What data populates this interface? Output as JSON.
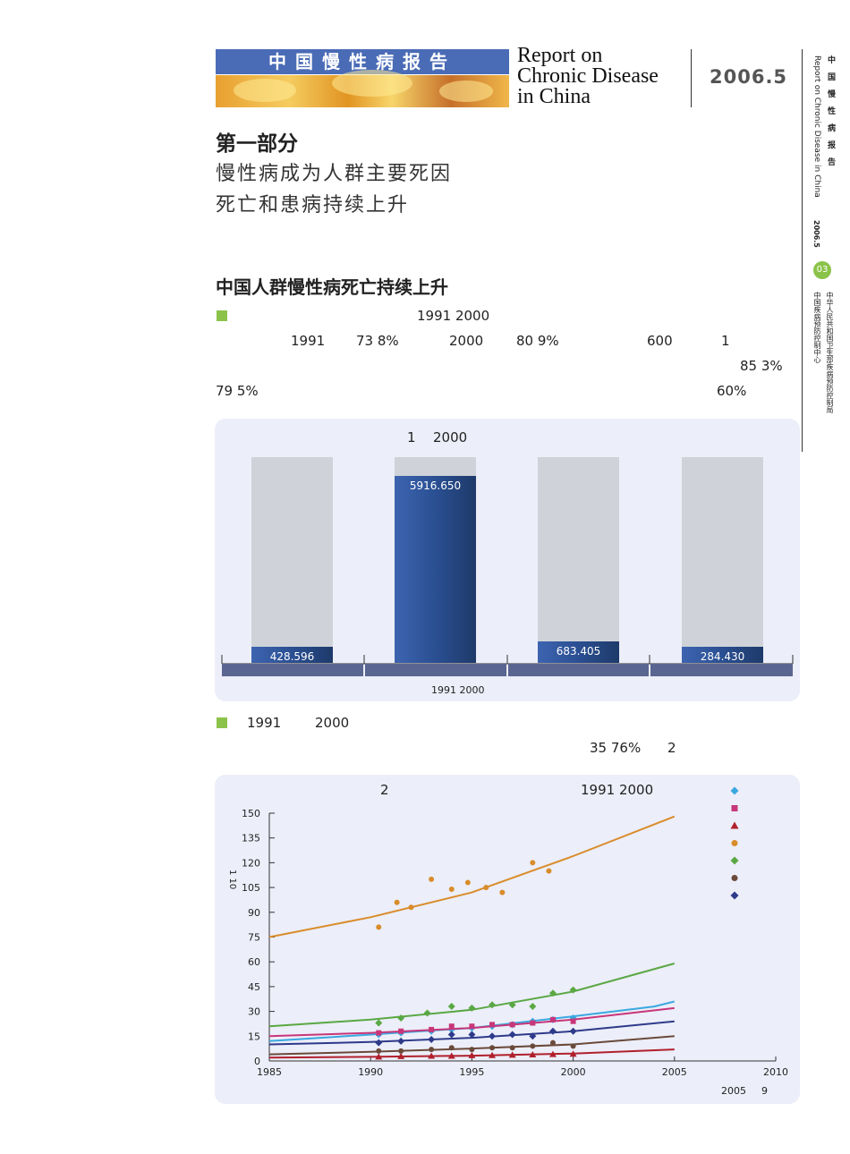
{
  "header": {
    "band_title": "中国慢性病报告",
    "en_title_lines": [
      "Report on",
      "Chronic Disease",
      "in China"
    ],
    "date": "2006.5"
  },
  "side": {
    "title_cn": "中国慢性病报告",
    "title_en": "Report on Chronic Disease in China",
    "date": "2006.5",
    "page_number": "03",
    "org1": "中华人民共和国卫生部疾病预防控制局",
    "org2": "中国疾病预防控制中心"
  },
  "part": {
    "title": "第一部分",
    "subtitle1": "慢性病成为人群主要死因",
    "subtitle2": "死亡和患病持续上升"
  },
  "section": {
    "title": "中国人群慢性病死亡持续上升",
    "p1_years": "1991  2000",
    "p1_a": "1991",
    "p1_b": "73  8%",
    "p1_c": "2000",
    "p1_d": "80  9%",
    "p1_e": "600",
    "p1_f": "1",
    "p1_g": "85  3%",
    "p1_h": "79  5%",
    "p1_i": "60%"
  },
  "chart1": {
    "title_a": "1",
    "title_b": "2000",
    "caption": "1991  2000",
    "bar_color": "#2c5296",
    "bg_color": "#cfd3d9",
    "axis_color": "#5a6590"
  },
  "para2": {
    "a": "1991",
    "b": "2000",
    "c": "35  76%",
    "d": "2"
  },
  "chart2": {
    "title_a": "2",
    "title_b": "1991  2000",
    "ylabel": "1 10",
    "footnote_a": "2005",
    "footnote_b": "9",
    "legend_markers": [
      {
        "shape": "diamond",
        "color": "#3aa8e0"
      },
      {
        "shape": "square",
        "color": "#c8367a"
      },
      {
        "shape": "triangle",
        "color": "#b0202c"
      },
      {
        "shape": "circle",
        "color": "#d98c2a"
      },
      {
        "shape": "diamond",
        "color": "#5aa844"
      },
      {
        "shape": "circle",
        "color": "#6a4a3a"
      },
      {
        "shape": "diamond",
        "color": "#2e3a8a"
      }
    ]
  },
  "chart_data": [
    {
      "type": "bar",
      "categories": [
        "",
        "",
        "",
        ""
      ],
      "values": [
        428.596,
        5916.65,
        683.405,
        284.43
      ],
      "labels": [
        "428.596",
        "5916.650",
        "683.405",
        "284.430"
      ],
      "ylim": [
        0,
        6500
      ]
    },
    {
      "type": "line",
      "x_ticks": [
        1985,
        1990,
        1995,
        2000,
        2005,
        2010
      ],
      "y_ticks": [
        0,
        15,
        30,
        45,
        60,
        75,
        90,
        105,
        120,
        135,
        150
      ],
      "xlim": [
        1985,
        2010
      ],
      "ylim": [
        0,
        150
      ],
      "series": [
        {
          "color": "#d98c2a",
          "marker": "circle",
          "fit": [
            [
              1985,
              75
            ],
            [
              1990,
              87
            ],
            [
              1995,
              102
            ],
            [
              2000,
              124
            ],
            [
              2005,
              148
            ]
          ],
          "points": [
            [
              1990.4,
              81
            ],
            [
              1991.3,
              96
            ],
            [
              1992,
              93
            ],
            [
              1993,
              110
            ],
            [
              1994,
              104
            ],
            [
              1994.8,
              108
            ],
            [
              1995.7,
              105
            ],
            [
              1996.5,
              102
            ],
            [
              1998,
              120
            ],
            [
              1998.8,
              115
            ]
          ]
        },
        {
          "color": "#5aa844",
          "marker": "diamond",
          "fit": [
            [
              1985,
              21
            ],
            [
              1990,
              25
            ],
            [
              1995,
              31
            ],
            [
              2000,
              42
            ],
            [
              2005,
              59
            ]
          ],
          "points": [
            [
              1990.4,
              23
            ],
            [
              1991.5,
              26
            ],
            [
              1992.8,
              29
            ],
            [
              1994,
              33
            ],
            [
              1995,
              32
            ],
            [
              1996,
              34
            ],
            [
              1997,
              34
            ],
            [
              1998,
              33
            ],
            [
              1999,
              41
            ],
            [
              2000,
              43
            ]
          ]
        },
        {
          "color": "#3aa8e0",
          "marker": "diamond",
          "fit": [
            [
              1985,
              12
            ],
            [
              1990,
              16
            ],
            [
              1995,
              20
            ],
            [
              2000,
              27
            ],
            [
              2004,
              33
            ],
            [
              2005,
              36
            ]
          ],
          "points": [
            [
              1990.4,
              16
            ],
            [
              1991.5,
              17
            ],
            [
              1993,
              18
            ],
            [
              1994,
              19
            ],
            [
              1995,
              20
            ],
            [
              1996,
              21
            ],
            [
              1997,
              22
            ],
            [
              1998,
              24
            ],
            [
              1999,
              25
            ],
            [
              2000,
              26
            ]
          ]
        },
        {
          "color": "#c8367a",
          "marker": "square",
          "fit": [
            [
              1985,
              15
            ],
            [
              1990,
              17
            ],
            [
              1995,
              20
            ],
            [
              2000,
              25
            ],
            [
              2005,
              32
            ]
          ],
          "points": [
            [
              1990.4,
              17
            ],
            [
              1991.5,
              18
            ],
            [
              1993,
              19
            ],
            [
              1994,
              21
            ],
            [
              1995,
              21
            ],
            [
              1996,
              22
            ],
            [
              1997,
              22
            ],
            [
              1998,
              23
            ],
            [
              1999,
              25
            ],
            [
              2000,
              24
            ]
          ]
        },
        {
          "color": "#2e3a8a",
          "marker": "diamond",
          "fit": [
            [
              1985,
              10
            ],
            [
              1990,
              11.5
            ],
            [
              1995,
              14
            ],
            [
              2000,
              18
            ],
            [
              2005,
              24
            ]
          ],
          "points": [
            [
              1990.4,
              11
            ],
            [
              1991.5,
              12
            ],
            [
              1993,
              13
            ],
            [
              1994,
              16
            ],
            [
              1995,
              16
            ],
            [
              1996,
              15
            ],
            [
              1997,
              16
            ],
            [
              1998,
              15
            ],
            [
              1999,
              18
            ],
            [
              2000,
              18
            ]
          ]
        },
        {
          "color": "#6a4a3a",
          "marker": "circle",
          "fit": [
            [
              1985,
              4
            ],
            [
              1990,
              5.5
            ],
            [
              1995,
              7.5
            ],
            [
              2000,
              10
            ],
            [
              2005,
              15
            ]
          ],
          "points": [
            [
              1990.4,
              6
            ],
            [
              1991.5,
              6
            ],
            [
              1993,
              7
            ],
            [
              1994,
              8
            ],
            [
              1995,
              7
            ],
            [
              1996,
              8
            ],
            [
              1997,
              8
            ],
            [
              1998,
              9
            ],
            [
              1999,
              11
            ],
            [
              2000,
              9
            ]
          ]
        },
        {
          "color": "#b0202c",
          "marker": "triangle",
          "fit": [
            [
              1985,
              2
            ],
            [
              1990,
              2.5
            ],
            [
              1995,
              3.2
            ],
            [
              2000,
              4.5
            ],
            [
              2005,
              7
            ]
          ],
          "points": [
            [
              1990.4,
              2.5
            ],
            [
              1991.5,
              2.8
            ],
            [
              1993,
              3
            ],
            [
              1994,
              3
            ],
            [
              1995,
              3.3
            ],
            [
              1996,
              3.4
            ],
            [
              1997,
              3.6
            ],
            [
              1998,
              3.8
            ],
            [
              1999,
              4
            ],
            [
              2000,
              4.2
            ]
          ]
        }
      ]
    }
  ]
}
